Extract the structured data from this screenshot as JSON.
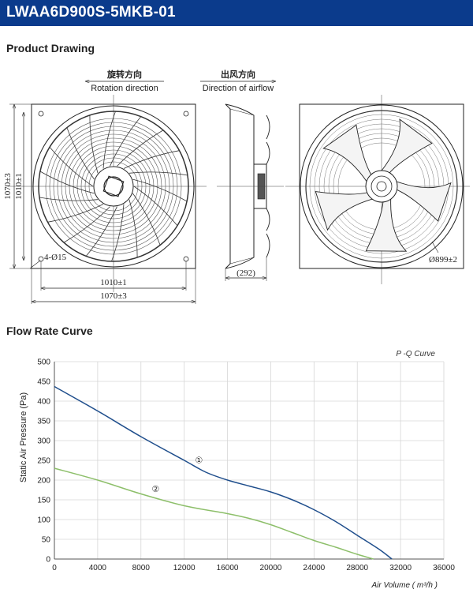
{
  "header": {
    "title": "LWAA6D900S-5MKB-01"
  },
  "sections": {
    "drawing_title": "Product Drawing",
    "curve_title": "Flow Rate Curve"
  },
  "drawing": {
    "rotation_cn": "旋转方向",
    "rotation_en": "Rotation direction",
    "airflow_cn": "出风方向",
    "airflow_en": "Direction of airflow",
    "dim_height_outer": "1070±3",
    "dim_height_inner": "1010±1",
    "dim_width_inner": "1010±1",
    "dim_width_outer": "1070±3",
    "dim_holes": "4-Ø15",
    "dim_depth": "(292)",
    "dim_diameter": "Ø899±2"
  },
  "chart_data": {
    "type": "line",
    "title": "P -Q Curve",
    "xlabel": "Air Volume ( m³/h )",
    "ylabel": "Static Air Pressure  (Pa)",
    "xlim": [
      0,
      36000
    ],
    "ylim": [
      0,
      500
    ],
    "grid": true,
    "x_ticks": [
      "0",
      "4000",
      "8000",
      "12000",
      "16000",
      "20000",
      "24000",
      "28000",
      "32000",
      "36000"
    ],
    "y_ticks": [
      "0",
      "50",
      "100",
      "150",
      "200",
      "250",
      "300",
      "350",
      "400",
      "450",
      "500"
    ],
    "series": [
      {
        "name": "①",
        "color": "#1f4e8c",
        "x": [
          0,
          4000,
          8000,
          12000,
          14000,
          16000,
          18000,
          20000,
          22000,
          24000,
          26000,
          28000,
          30000,
          31200
        ],
        "y": [
          437,
          375,
          310,
          250,
          220,
          200,
          185,
          170,
          150,
          125,
          95,
          60,
          25,
          0
        ]
      },
      {
        "name": "②",
        "color": "#8dbf6a",
        "x": [
          0,
          4000,
          8000,
          12000,
          16000,
          18000,
          20000,
          22000,
          24000,
          26000,
          28000,
          29500
        ],
        "y": [
          230,
          200,
          165,
          135,
          115,
          103,
          87,
          67,
          47,
          30,
          12,
          0
        ]
      }
    ]
  }
}
